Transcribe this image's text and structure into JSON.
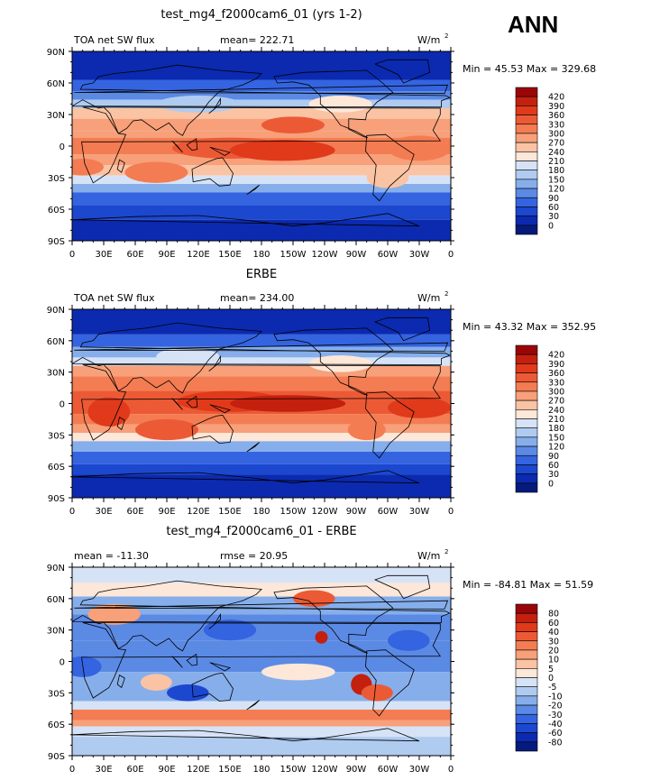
{
  "season": "ANN",
  "axes": {
    "lat_ticks": [
      "90N",
      "60N",
      "30N",
      "0",
      "30S",
      "60S",
      "90S"
    ],
    "lon_ticks": [
      "0",
      "30E",
      "60E",
      "90E",
      "120E",
      "150E",
      "180",
      "150W",
      "120W",
      "90W",
      "60W",
      "30W",
      "0"
    ]
  },
  "chart_data": [
    {
      "type": "heatmap",
      "title": "test_mg4_f2000cam6_01 (yrs 1-2)",
      "left_label": "TOA net SW flux",
      "center_label": "mean= 222.71",
      "units": "W/m",
      "units_sup": "2",
      "minmax": "Min =   45.53 Max =  329.68",
      "xlim": [
        0,
        360
      ],
      "ylim": [
        -90,
        90
      ],
      "colorbar": {
        "levels": [
          "420",
          "390",
          "360",
          "330",
          "300",
          "270",
          "240",
          "210",
          "180",
          "150",
          "120",
          "90",
          "60",
          "30",
          "0"
        ],
        "colors": [
          "#9a0608",
          "#c4200e",
          "#e03a1b",
          "#ec5a35",
          "#f47c52",
          "#f7a07a",
          "#fac3a4",
          "#fde7d8",
          "#d6e3f7",
          "#b0cbf0",
          "#86aeeb",
          "#5b8ae5",
          "#3464e0",
          "#1c47cf",
          "#0b2ab0",
          "#051a7a"
        ]
      }
    },
    {
      "type": "heatmap",
      "title": "ERBE",
      "left_label": "TOA net SW flux",
      "center_label": "mean= 234.00",
      "units": "W/m",
      "units_sup": "2",
      "minmax": "Min =   43.32 Max =  352.95",
      "xlim": [
        0,
        360
      ],
      "ylim": [
        -90,
        90
      ],
      "colorbar": {
        "levels": [
          "420",
          "390",
          "360",
          "330",
          "300",
          "270",
          "240",
          "210",
          "180",
          "150",
          "120",
          "90",
          "60",
          "30",
          "0"
        ],
        "colors": [
          "#9a0608",
          "#c4200e",
          "#e03a1b",
          "#ec5a35",
          "#f47c52",
          "#f7a07a",
          "#fac3a4",
          "#fde7d8",
          "#d6e3f7",
          "#b0cbf0",
          "#86aeeb",
          "#5b8ae5",
          "#3464e0",
          "#1c47cf",
          "#0b2ab0",
          "#051a7a"
        ]
      }
    },
    {
      "type": "heatmap",
      "title": "test_mg4_f2000cam6_01 - ERBE",
      "left_label": "mean = -11.30",
      "center_label": "rmse =   20.95",
      "units": "W/m",
      "units_sup": "2",
      "minmax": "Min = -84.81 Max =   51.59",
      "xlim": [
        0,
        360
      ],
      "ylim": [
        -90,
        90
      ],
      "colorbar": {
        "levels": [
          "80",
          "60",
          "40",
          "30",
          "20",
          "10",
          "5",
          "0",
          "-5",
          "-10",
          "-20",
          "-30",
          "-40",
          "-60",
          "-80"
        ],
        "colors": [
          "#9a0608",
          "#c4200e",
          "#e03a1b",
          "#ec5a35",
          "#f47c52",
          "#f7a07a",
          "#fac3a4",
          "#fde7d8",
          "#d6e3f7",
          "#b0cbf0",
          "#86aeeb",
          "#5b8ae5",
          "#3464e0",
          "#1c47cf",
          "#0b2ab0",
          "#051a7a"
        ]
      }
    }
  ]
}
